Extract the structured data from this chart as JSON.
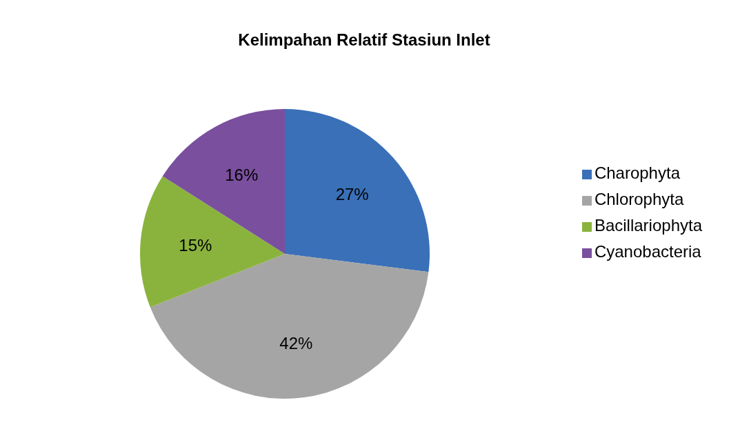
{
  "chart_data": {
    "type": "pie",
    "title": "Kelimpahan Relatif Stasiun Inlet",
    "categories": [
      "Charophyta",
      "Chlorophyta",
      "Bacillariophyta",
      "Cyanobacteria"
    ],
    "values": [
      27,
      42,
      15,
      16
    ],
    "colors": [
      "#3a70b8",
      "#a5a5a5",
      "#8ab33e",
      "#7a4f9e"
    ],
    "value_labels": [
      "27%",
      "42%",
      "15%",
      "16%"
    ],
    "legend": "right"
  }
}
